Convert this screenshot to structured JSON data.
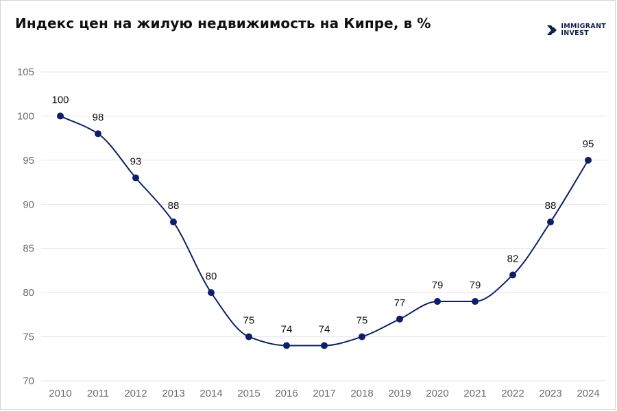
{
  "header": {
    "title": "Индекс цен на жилую недвижимость на Кипре, в %"
  },
  "logo": {
    "line1": "IMMIGRANT",
    "line2": "INVEST",
    "icon": "immigrant-invest-logo-icon"
  },
  "colors": {
    "series": "#0d1f6b",
    "grid": "#e6e6e6",
    "tick_text": "#6b6b6b",
    "label_text": "#111111"
  },
  "chart_data": {
    "type": "line",
    "title": "Индекс цен на жилую недвижимость на Кипре, в %",
    "xlabel": "",
    "ylabel": "",
    "categories": [
      "2010",
      "2011",
      "2012",
      "2013",
      "2014",
      "2015",
      "2016",
      "2017",
      "2018",
      "2019",
      "2020",
      "2021",
      "2022",
      "2023",
      "2024"
    ],
    "series": [
      {
        "values": [
          100,
          98,
          93,
          88,
          80,
          75,
          74,
          74,
          75,
          77,
          79,
          79,
          82,
          88,
          95
        ]
      }
    ],
    "ylim": [
      70,
      105
    ],
    "yticks": [
      70,
      75,
      80,
      85,
      90,
      95,
      100,
      105
    ],
    "grid": true,
    "smooth": true,
    "markers": true,
    "data_labels": true
  }
}
